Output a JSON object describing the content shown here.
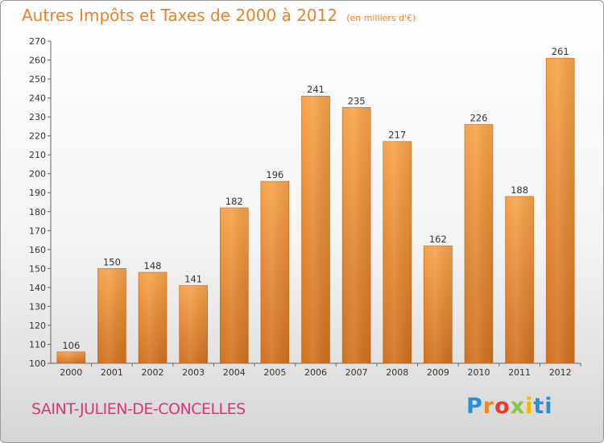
{
  "chart_data": {
    "type": "bar",
    "title": "Autres Impôts et Taxes de 2000 à 2012",
    "subtitle": "(en milliers d'€)",
    "xlabel": "",
    "ylabel": "",
    "categories": [
      "2000",
      "2001",
      "2002",
      "2003",
      "2004",
      "2005",
      "2006",
      "2007",
      "2008",
      "2009",
      "2010",
      "2011",
      "2012"
    ],
    "values": [
      106,
      150,
      148,
      141,
      182,
      196,
      241,
      235,
      217,
      162,
      226,
      188,
      261
    ],
    "ylim": [
      100,
      270
    ],
    "ytick_step": 10,
    "grid": false,
    "legend": "none",
    "bar_color": "#f0943a",
    "bar_color_dark": "#c96a1a"
  },
  "footer": {
    "city": "SAINT-JULIEN-DE-CONCELLES",
    "brand_letters": [
      "P",
      "r",
      "o",
      "x",
      "i",
      "t",
      "i"
    ]
  },
  "colors": {
    "title": "#e8842a",
    "city": "#d8367c"
  }
}
